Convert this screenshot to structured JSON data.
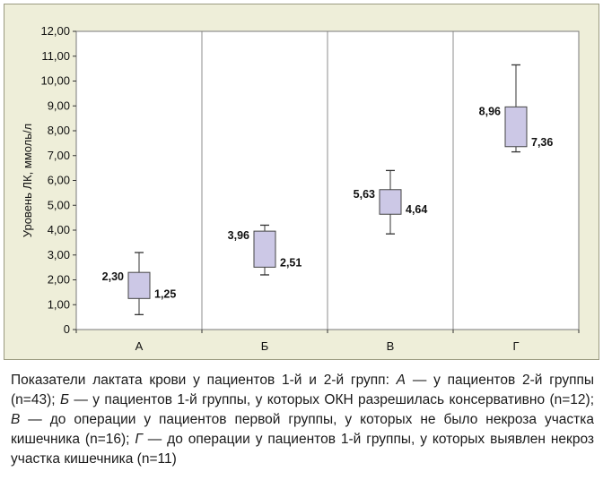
{
  "chart_data": {
    "type": "box",
    "ylabel": "Уровень ЛК, ммоль/л",
    "ylim": [
      0,
      12
    ],
    "yticks": [
      0,
      1,
      2,
      3,
      4,
      5,
      6,
      7,
      8,
      9,
      10,
      11,
      12
    ],
    "ytick_labels": [
      "0",
      "1,00",
      "2,00",
      "3,00",
      "4,00",
      "5,00",
      "6,00",
      "7,00",
      "8,00",
      "9,00",
      "10,00",
      "11,00",
      "12,00"
    ],
    "grid": "vertical between categories",
    "categories": [
      "А",
      "Б",
      "В",
      "Г"
    ],
    "boxes": [
      {
        "category": "А",
        "whisker_low": 0.6,
        "q1": 1.25,
        "q3": 2.3,
        "whisker_high": 3.1,
        "label_q3": "2,30",
        "label_q1": "1,25"
      },
      {
        "category": "Б",
        "whisker_low": 2.2,
        "q1": 2.51,
        "q3": 3.96,
        "whisker_high": 4.2,
        "label_q3": "3,96",
        "label_q1": "2,51"
      },
      {
        "category": "В",
        "whisker_low": 3.85,
        "q1": 4.64,
        "q3": 5.63,
        "whisker_high": 6.4,
        "label_q3": "5,63",
        "label_q1": "4,64"
      },
      {
        "category": "Г",
        "whisker_low": 7.15,
        "q1": 7.36,
        "q3": 8.96,
        "whisker_high": 10.65,
        "label_q3": "8,96",
        "label_q1": "7,36"
      }
    ],
    "box_color": "#ccc8e6"
  },
  "caption": {
    "lead": "Показатели лактата крови у пациентов 1-й и 2-й групп: ",
    "a_letter": "А",
    "a_text": " — у пациентов 2-й группы (n=43); ",
    "b_letter": "Б",
    "b_text": " — у пациентов 1-й группы, у которых ОКН разрешилась кон­сервативно (n=12); ",
    "v_letter": "В",
    "v_text": " — до операции у пациентов первой группы, у которых не было некроза участка кишечника (n=16); ",
    "g_letter": "Г",
    "g_text": " — до операции у пациентов 1-й группы, у которых выявлен некроз участка кишечника (n=11)"
  }
}
